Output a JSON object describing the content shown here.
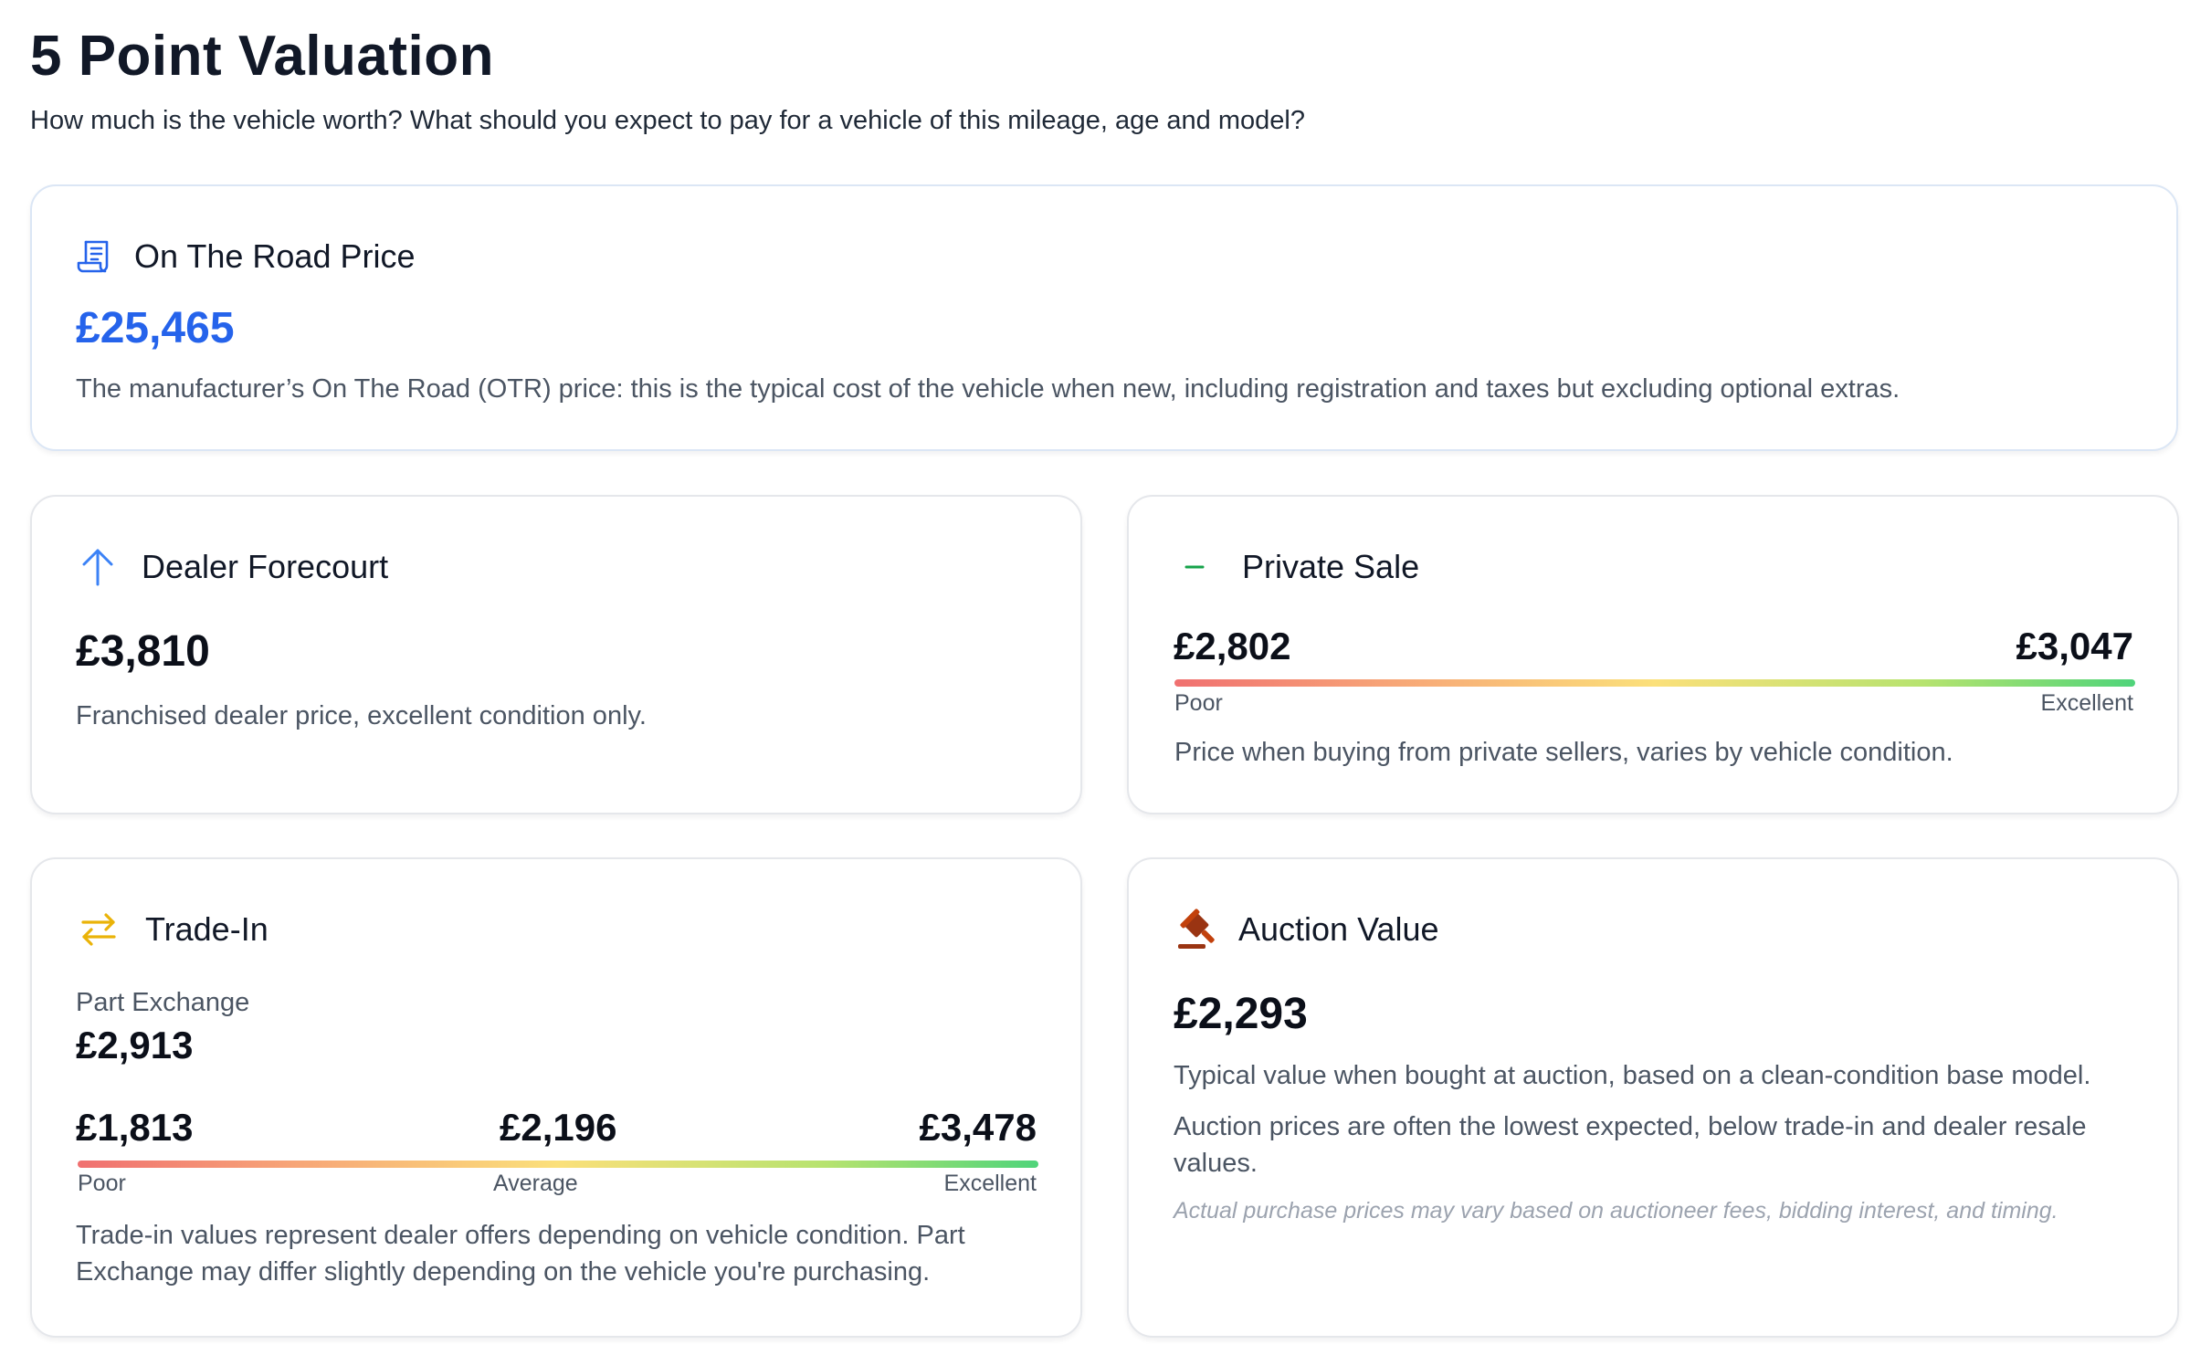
{
  "page": {
    "title": "5 Point Valuation",
    "subtitle": "How much is the vehicle worth? What should you expect to pay for a vehicle of this mileage, age and model?"
  },
  "otr": {
    "title": "On The Road Price",
    "price": "£25,465",
    "description": "The manufacturer’s On The Road (OTR) price: this is the typical cost of the vehicle when new, including registration and taxes but excluding optional extras.",
    "icon": "receipt-icon",
    "accent": "#2563eb"
  },
  "dealer": {
    "title": "Dealer Forecourt",
    "price": "£3,810",
    "description": "Franchised dealer price, excellent condition only.",
    "icon": "arrow-up-icon"
  },
  "private": {
    "title": "Private Sale",
    "low": "£2,802",
    "high": "£3,047",
    "low_label": "Poor",
    "high_label": "Excellent",
    "description": "Price when buying from private sellers, varies by vehicle condition.",
    "icon": "minus-icon"
  },
  "tradein": {
    "title": "Trade-In",
    "part_exchange_label": "Part Exchange",
    "part_exchange_price": "£2,913",
    "low": "£1,813",
    "mid": "£2,196",
    "high": "£3,478",
    "low_label": "Poor",
    "mid_label": "Average",
    "high_label": "Excellent",
    "description_line1": "Trade-in values represent dealer offers depending on vehicle condition. Part",
    "description_line2": "Exchange may differ slightly depending on the vehicle you're purchasing.",
    "icon": "swap-arrows-icon"
  },
  "auction": {
    "title": "Auction Value",
    "price": "£2,293",
    "description1": "Typical value when bought at auction, based on a clean-condition base model.",
    "description2_line1": "Auction prices are often the lowest expected, below trade-in and dealer resale",
    "description2_line2": "values.",
    "note": "Actual purchase prices may vary based on auctioneer fees, bidding interest, and timing.",
    "icon": "gavel-icon"
  },
  "colors": {
    "blue": "#2563eb",
    "green": "#16a34a",
    "amber": "#eab308",
    "brown": "#9a3412"
  }
}
